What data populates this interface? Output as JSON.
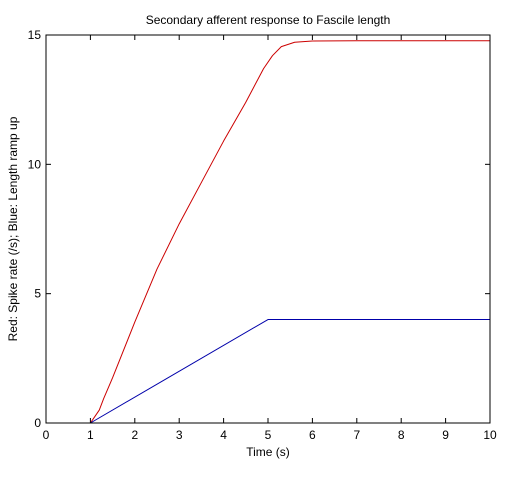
{
  "chart_data": {
    "type": "line",
    "title": "Secondary afferent response to Fascile length",
    "xlabel": "Time (s)",
    "ylabel": "Red: Spike rate (/s); Blue: Length ramp up",
    "xlim": [
      0,
      10
    ],
    "ylim": [
      0,
      15
    ],
    "xticks": [
      0,
      1,
      2,
      3,
      4,
      5,
      6,
      7,
      8,
      9,
      10
    ],
    "yticks": [
      0,
      5,
      10,
      15
    ],
    "grid": false,
    "series": [
      {
        "color": "#cc0000",
        "x": [
          1.0,
          1.1,
          1.2,
          1.3,
          1.5,
          2.0,
          2.5,
          3.0,
          3.5,
          4.0,
          4.5,
          4.9,
          5.1,
          5.3,
          5.6,
          6.0,
          7.0,
          8.0,
          9.0,
          10.0
        ],
        "y": [
          0.0,
          0.25,
          0.5,
          0.95,
          1.75,
          3.9,
          5.95,
          7.7,
          9.3,
          10.9,
          12.4,
          13.7,
          14.2,
          14.55,
          14.72,
          14.77,
          14.78,
          14.78,
          14.78,
          14.78
        ]
      },
      {
        "color": "#0000aa",
        "x": [
          1,
          5,
          10
        ],
        "y": [
          0,
          4,
          4
        ]
      }
    ]
  }
}
